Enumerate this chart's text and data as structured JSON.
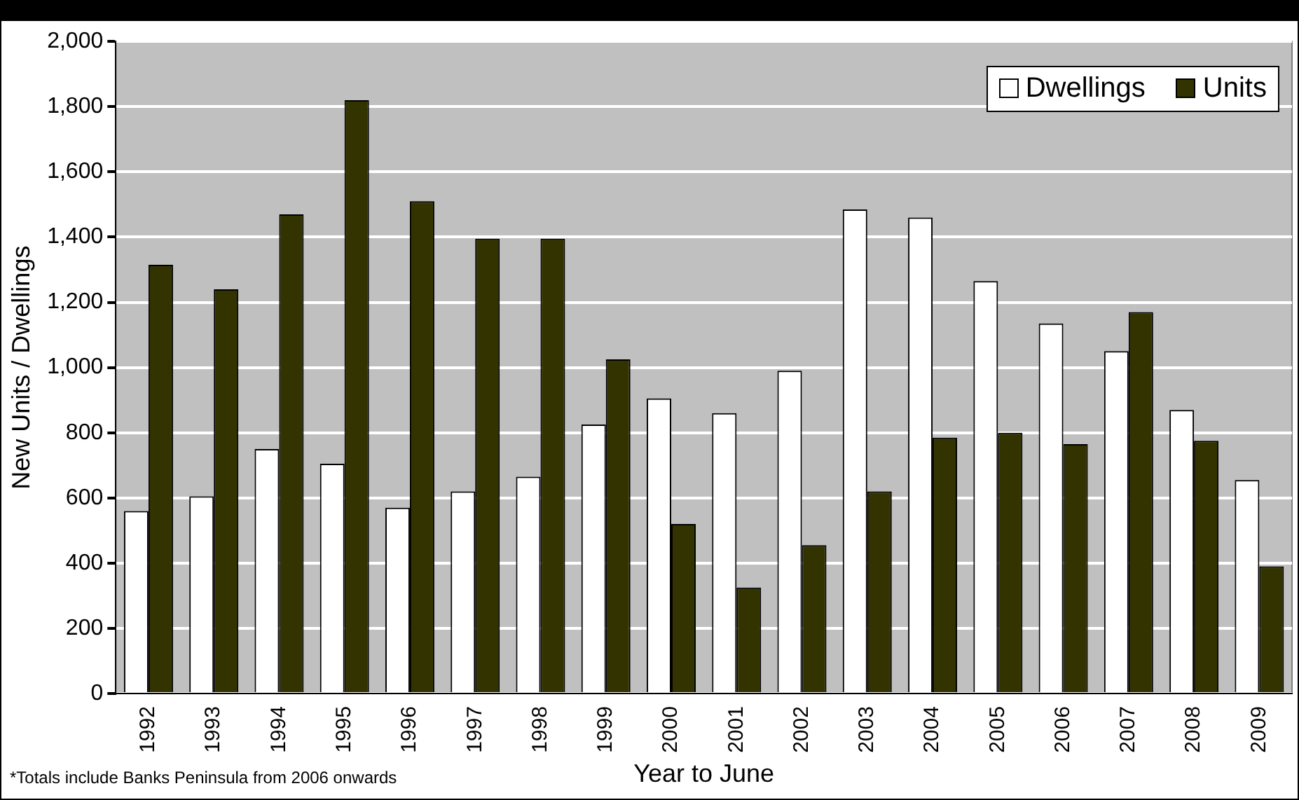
{
  "chart_data": {
    "type": "bar",
    "xlabel": "Year to June",
    "ylabel": "New Units / Dwellings",
    "annotations": [
      "*Totals include Banks Peninsula from 2006 onwards"
    ],
    "categories": [
      "1992",
      "1993",
      "1994",
      "1995",
      "1996",
      "1997",
      "1998",
      "1999",
      "2000",
      "2001",
      "2002",
      "2003",
      "2004",
      "2005",
      "2006",
      "2007",
      "2008",
      "2009"
    ],
    "series": [
      {
        "name": "Dwellings",
        "color": "#ffffff",
        "values": [
          560,
          605,
          750,
          705,
          570,
          620,
          665,
          825,
          905,
          860,
          990,
          1485,
          1460,
          1265,
          1135,
          1050,
          870,
          655
        ]
      },
      {
        "name": "Units",
        "color": "#333300",
        "values": [
          1315,
          1240,
          1470,
          1820,
          1510,
          1395,
          1395,
          1025,
          520,
          325,
          455,
          620,
          785,
          800,
          765,
          1170,
          775,
          390
        ]
      }
    ],
    "ylim": [
      0,
      2000
    ],
    "yticks": [
      0,
      200,
      400,
      600,
      800,
      {
        "value": 1000,
        "label": "1,000"
      },
      {
        "value": 1200,
        "label": "1,200"
      },
      {
        "value": 1400,
        "label": "1,400"
      },
      {
        "value": 1600,
        "label": "1,600"
      },
      {
        "value": 1800,
        "label": "1,800"
      },
      {
        "value": 2000,
        "label": "2,000"
      }
    ],
    "grid": "y",
    "legend": "top right"
  }
}
